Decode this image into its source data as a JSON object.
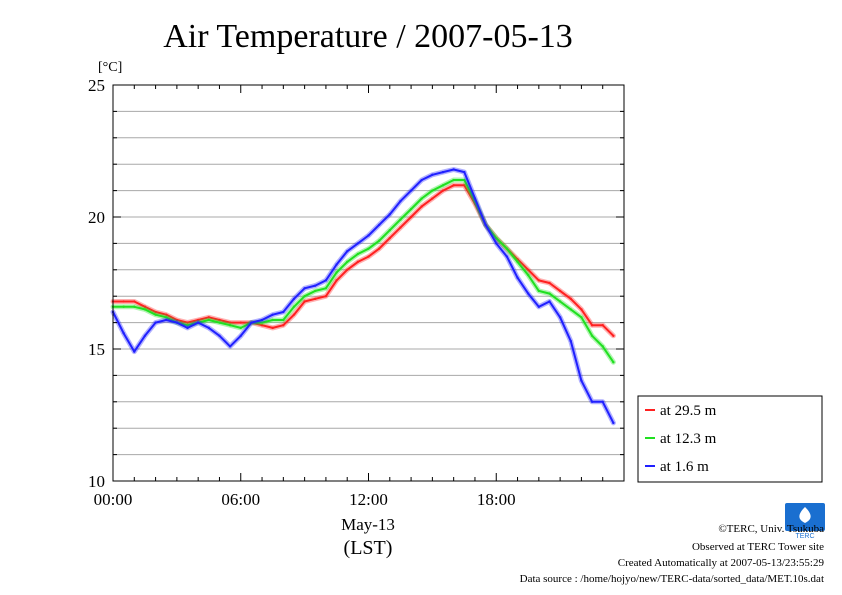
{
  "chart_data": {
    "type": "line",
    "title": "Air Temperature / 2007-05-13",
    "ylabel": "[°C]",
    "ylim": [
      10,
      25
    ],
    "yticks": [
      10,
      15,
      20,
      25
    ],
    "xlim": [
      0,
      24
    ],
    "xticks": [
      0,
      6,
      12,
      18
    ],
    "xtick_labels": [
      "00:00",
      "06:00",
      "12:00",
      "18:00"
    ],
    "date_label": "May-13",
    "xlabel": "(LST)",
    "grid": true,
    "legend_position": "lower-right-outside",
    "x": [
      0,
      0.5,
      1,
      1.5,
      2,
      2.5,
      3,
      3.5,
      4,
      4.5,
      5,
      5.5,
      6,
      6.5,
      7,
      7.5,
      8,
      8.5,
      9,
      9.5,
      10,
      10.5,
      11,
      11.5,
      12,
      12.5,
      13,
      13.5,
      14,
      14.5,
      15,
      15.5,
      16,
      16.5,
      17,
      17.5,
      18,
      18.5,
      19,
      19.5,
      20,
      20.5,
      21,
      21.5,
      22,
      22.5,
      23,
      23.5
    ],
    "series": [
      {
        "name": "at 29.5 m",
        "color": "#ff2020",
        "values": [
          16.8,
          16.8,
          16.8,
          16.6,
          16.4,
          16.3,
          16.1,
          16.0,
          16.1,
          16.2,
          16.1,
          16.0,
          16.0,
          16.0,
          15.9,
          15.8,
          15.9,
          16.3,
          16.8,
          16.9,
          17.0,
          17.6,
          18.0,
          18.3,
          18.5,
          18.8,
          19.2,
          19.6,
          20.0,
          20.4,
          20.7,
          21.0,
          21.2,
          21.2,
          20.5,
          19.7,
          19.2,
          18.8,
          18.4,
          18.0,
          17.6,
          17.5,
          17.2,
          16.9,
          16.5,
          15.9,
          15.9,
          15.5
        ]
      },
      {
        "name": "at 12.3 m",
        "color": "#20e020",
        "values": [
          16.6,
          16.6,
          16.6,
          16.5,
          16.3,
          16.2,
          16.0,
          15.9,
          16.0,
          16.1,
          16.0,
          15.9,
          15.8,
          16.0,
          16.0,
          16.1,
          16.1,
          16.6,
          17.0,
          17.2,
          17.3,
          17.9,
          18.3,
          18.6,
          18.8,
          19.1,
          19.5,
          19.9,
          20.3,
          20.7,
          21.0,
          21.2,
          21.4,
          21.4,
          20.6,
          19.7,
          19.2,
          18.8,
          18.3,
          17.8,
          17.2,
          17.1,
          16.8,
          16.5,
          16.2,
          15.5,
          15.1,
          14.5
        ]
      },
      {
        "name": "at 1.6 m",
        "color": "#2020ff",
        "values": [
          16.4,
          15.6,
          14.9,
          15.5,
          16.0,
          16.1,
          16.0,
          15.8,
          16.0,
          15.8,
          15.5,
          15.1,
          15.5,
          16.0,
          16.1,
          16.3,
          16.4,
          16.9,
          17.3,
          17.4,
          17.6,
          18.2,
          18.7,
          19.0,
          19.3,
          19.7,
          20.1,
          20.6,
          21.0,
          21.4,
          21.6,
          21.7,
          21.8,
          21.7,
          20.7,
          19.7,
          19.0,
          18.5,
          17.7,
          17.1,
          16.6,
          16.8,
          16.2,
          15.3,
          13.8,
          13.0,
          13.0,
          12.2
        ]
      }
    ]
  },
  "credits": {
    "copyright": "©TERC, Univ. Tsukuba",
    "observed": "Observed at TERC Tower site",
    "created": "Created Automatically at 2007-05-13/23:55:29",
    "source": "Data source : /home/hojyo/new/TERC-data/sorted_data/MET.10s.dat",
    "logo_text": "TERC"
  }
}
